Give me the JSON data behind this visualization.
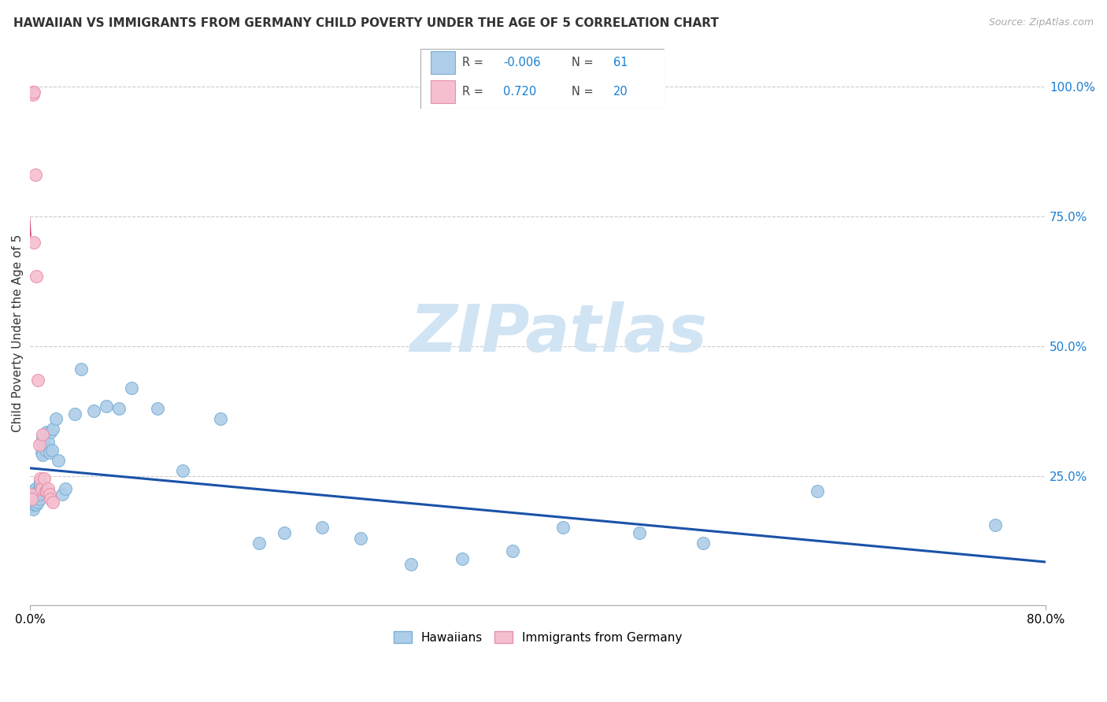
{
  "title": "HAWAIIAN VS IMMIGRANTS FROM GERMANY CHILD POVERTY UNDER THE AGE OF 5 CORRELATION CHART",
  "source": "Source: ZipAtlas.com",
  "ylabel": "Child Poverty Under the Age of 5",
  "xmin": 0.0,
  "xmax": 0.8,
  "ymin": 0.0,
  "ymax": 1.05,
  "right_yticks": [
    0.0,
    0.25,
    0.5,
    0.75,
    1.0
  ],
  "right_yticklabels": [
    "",
    "25.0%",
    "50.0%",
    "75.0%",
    "100.0%"
  ],
  "hawaiian_R": -0.006,
  "hawaiian_N": 61,
  "german_R": 0.72,
  "german_N": 20,
  "hawaiian_color": "#aecde8",
  "hawaiian_edge_color": "#7aafd4",
  "german_color": "#f5bfcf",
  "german_edge_color": "#e890a8",
  "trend_blue": "#1a52a8",
  "trend_pink": "#d84878",
  "watermark_color": "#d0e4f4",
  "legend_R_color": "#1a7fd4",
  "legend_label_color": "#444444",
  "hawaiian_x": [
    0.001,
    0.001,
    0.002,
    0.002,
    0.002,
    0.002,
    0.003,
    0.003,
    0.003,
    0.003,
    0.004,
    0.004,
    0.004,
    0.005,
    0.005,
    0.005,
    0.006,
    0.006,
    0.006,
    0.007,
    0.007,
    0.008,
    0.008,
    0.008,
    0.009,
    0.009,
    0.01,
    0.01,
    0.011,
    0.012,
    0.013,
    0.014,
    0.015,
    0.016,
    0.017,
    0.018,
    0.02,
    0.022,
    0.025,
    0.028,
    0.035,
    0.04,
    0.05,
    0.06,
    0.07,
    0.08,
    0.1,
    0.12,
    0.15,
    0.18,
    0.2,
    0.23,
    0.26,
    0.3,
    0.34,
    0.38,
    0.42,
    0.48,
    0.53,
    0.62,
    0.76
  ],
  "hawaiian_y": [
    0.21,
    0.19,
    0.22,
    0.195,
    0.2,
    0.185,
    0.215,
    0.205,
    0.195,
    0.2,
    0.225,
    0.215,
    0.21,
    0.2,
    0.21,
    0.195,
    0.2,
    0.22,
    0.215,
    0.205,
    0.215,
    0.23,
    0.24,
    0.235,
    0.315,
    0.295,
    0.325,
    0.29,
    0.31,
    0.3,
    0.335,
    0.315,
    0.295,
    0.335,
    0.3,
    0.34,
    0.36,
    0.28,
    0.215,
    0.225,
    0.37,
    0.455,
    0.375,
    0.385,
    0.38,
    0.42,
    0.38,
    0.26,
    0.36,
    0.12,
    0.14,
    0.15,
    0.13,
    0.08,
    0.09,
    0.105,
    0.15,
    0.14,
    0.12,
    0.22,
    0.155
  ],
  "german_x": [
    0.001,
    0.001,
    0.002,
    0.002,
    0.003,
    0.003,
    0.004,
    0.005,
    0.006,
    0.007,
    0.008,
    0.009,
    0.01,
    0.011,
    0.012,
    0.013,
    0.014,
    0.015,
    0.016,
    0.018
  ],
  "german_y": [
    0.215,
    0.205,
    0.99,
    0.985,
    0.99,
    0.7,
    0.83,
    0.635,
    0.435,
    0.31,
    0.245,
    0.225,
    0.33,
    0.245,
    0.22,
    0.22,
    0.225,
    0.215,
    0.205,
    0.2
  ]
}
